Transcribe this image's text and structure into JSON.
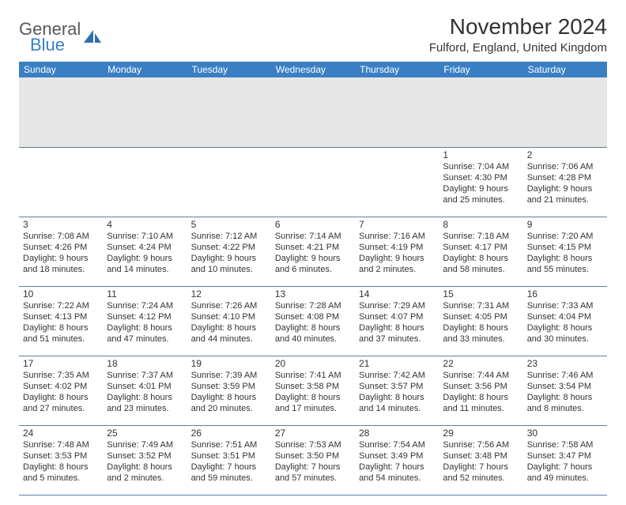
{
  "logo": {
    "word1": "General",
    "word2": "Blue"
  },
  "title": "November 2024",
  "subtitle": "Fulford, England, United Kingdom",
  "colors": {
    "header_bg": "#3a7fc4",
    "header_fg": "#ffffff",
    "spacer_bg": "#e6e6e6",
    "cell_border": "#5a7fa8",
    "text": "#333333",
    "logo_gray": "#585858",
    "logo_blue": "#3a7fc4"
  },
  "daynames": [
    "Sunday",
    "Monday",
    "Tuesday",
    "Wednesday",
    "Thursday",
    "Friday",
    "Saturday"
  ],
  "weeks": [
    [
      {
        "n": "",
        "lines": []
      },
      {
        "n": "",
        "lines": []
      },
      {
        "n": "",
        "lines": []
      },
      {
        "n": "",
        "lines": []
      },
      {
        "n": "",
        "lines": []
      },
      {
        "n": "1",
        "lines": [
          "Sunrise: 7:04 AM",
          "Sunset: 4:30 PM",
          "Daylight: 9 hours",
          "and 25 minutes."
        ]
      },
      {
        "n": "2",
        "lines": [
          "Sunrise: 7:06 AM",
          "Sunset: 4:28 PM",
          "Daylight: 9 hours",
          "and 21 minutes."
        ]
      }
    ],
    [
      {
        "n": "3",
        "lines": [
          "Sunrise: 7:08 AM",
          "Sunset: 4:26 PM",
          "Daylight: 9 hours",
          "and 18 minutes."
        ]
      },
      {
        "n": "4",
        "lines": [
          "Sunrise: 7:10 AM",
          "Sunset: 4:24 PM",
          "Daylight: 9 hours",
          "and 14 minutes."
        ]
      },
      {
        "n": "5",
        "lines": [
          "Sunrise: 7:12 AM",
          "Sunset: 4:22 PM",
          "Daylight: 9 hours",
          "and 10 minutes."
        ]
      },
      {
        "n": "6",
        "lines": [
          "Sunrise: 7:14 AM",
          "Sunset: 4:21 PM",
          "Daylight: 9 hours",
          "and 6 minutes."
        ]
      },
      {
        "n": "7",
        "lines": [
          "Sunrise: 7:16 AM",
          "Sunset: 4:19 PM",
          "Daylight: 9 hours",
          "and 2 minutes."
        ]
      },
      {
        "n": "8",
        "lines": [
          "Sunrise: 7:18 AM",
          "Sunset: 4:17 PM",
          "Daylight: 8 hours",
          "and 58 minutes."
        ]
      },
      {
        "n": "9",
        "lines": [
          "Sunrise: 7:20 AM",
          "Sunset: 4:15 PM",
          "Daylight: 8 hours",
          "and 55 minutes."
        ]
      }
    ],
    [
      {
        "n": "10",
        "lines": [
          "Sunrise: 7:22 AM",
          "Sunset: 4:13 PM",
          "Daylight: 8 hours",
          "and 51 minutes."
        ]
      },
      {
        "n": "11",
        "lines": [
          "Sunrise: 7:24 AM",
          "Sunset: 4:12 PM",
          "Daylight: 8 hours",
          "and 47 minutes."
        ]
      },
      {
        "n": "12",
        "lines": [
          "Sunrise: 7:26 AM",
          "Sunset: 4:10 PM",
          "Daylight: 8 hours",
          "and 44 minutes."
        ]
      },
      {
        "n": "13",
        "lines": [
          "Sunrise: 7:28 AM",
          "Sunset: 4:08 PM",
          "Daylight: 8 hours",
          "and 40 minutes."
        ]
      },
      {
        "n": "14",
        "lines": [
          "Sunrise: 7:29 AM",
          "Sunset: 4:07 PM",
          "Daylight: 8 hours",
          "and 37 minutes."
        ]
      },
      {
        "n": "15",
        "lines": [
          "Sunrise: 7:31 AM",
          "Sunset: 4:05 PM",
          "Daylight: 8 hours",
          "and 33 minutes."
        ]
      },
      {
        "n": "16",
        "lines": [
          "Sunrise: 7:33 AM",
          "Sunset: 4:04 PM",
          "Daylight: 8 hours",
          "and 30 minutes."
        ]
      }
    ],
    [
      {
        "n": "17",
        "lines": [
          "Sunrise: 7:35 AM",
          "Sunset: 4:02 PM",
          "Daylight: 8 hours",
          "and 27 minutes."
        ]
      },
      {
        "n": "18",
        "lines": [
          "Sunrise: 7:37 AM",
          "Sunset: 4:01 PM",
          "Daylight: 8 hours",
          "and 23 minutes."
        ]
      },
      {
        "n": "19",
        "lines": [
          "Sunrise: 7:39 AM",
          "Sunset: 3:59 PM",
          "Daylight: 8 hours",
          "and 20 minutes."
        ]
      },
      {
        "n": "20",
        "lines": [
          "Sunrise: 7:41 AM",
          "Sunset: 3:58 PM",
          "Daylight: 8 hours",
          "and 17 minutes."
        ]
      },
      {
        "n": "21",
        "lines": [
          "Sunrise: 7:42 AM",
          "Sunset: 3:57 PM",
          "Daylight: 8 hours",
          "and 14 minutes."
        ]
      },
      {
        "n": "22",
        "lines": [
          "Sunrise: 7:44 AM",
          "Sunset: 3:56 PM",
          "Daylight: 8 hours",
          "and 11 minutes."
        ]
      },
      {
        "n": "23",
        "lines": [
          "Sunrise: 7:46 AM",
          "Sunset: 3:54 PM",
          "Daylight: 8 hours",
          "and 8 minutes."
        ]
      }
    ],
    [
      {
        "n": "24",
        "lines": [
          "Sunrise: 7:48 AM",
          "Sunset: 3:53 PM",
          "Daylight: 8 hours",
          "and 5 minutes."
        ]
      },
      {
        "n": "25",
        "lines": [
          "Sunrise: 7:49 AM",
          "Sunset: 3:52 PM",
          "Daylight: 8 hours",
          "and 2 minutes."
        ]
      },
      {
        "n": "26",
        "lines": [
          "Sunrise: 7:51 AM",
          "Sunset: 3:51 PM",
          "Daylight: 7 hours",
          "and 59 minutes."
        ]
      },
      {
        "n": "27",
        "lines": [
          "Sunrise: 7:53 AM",
          "Sunset: 3:50 PM",
          "Daylight: 7 hours",
          "and 57 minutes."
        ]
      },
      {
        "n": "28",
        "lines": [
          "Sunrise: 7:54 AM",
          "Sunset: 3:49 PM",
          "Daylight: 7 hours",
          "and 54 minutes."
        ]
      },
      {
        "n": "29",
        "lines": [
          "Sunrise: 7:56 AM",
          "Sunset: 3:48 PM",
          "Daylight: 7 hours",
          "and 52 minutes."
        ]
      },
      {
        "n": "30",
        "lines": [
          "Sunrise: 7:58 AM",
          "Sunset: 3:47 PM",
          "Daylight: 7 hours",
          "and 49 minutes."
        ]
      }
    ]
  ]
}
